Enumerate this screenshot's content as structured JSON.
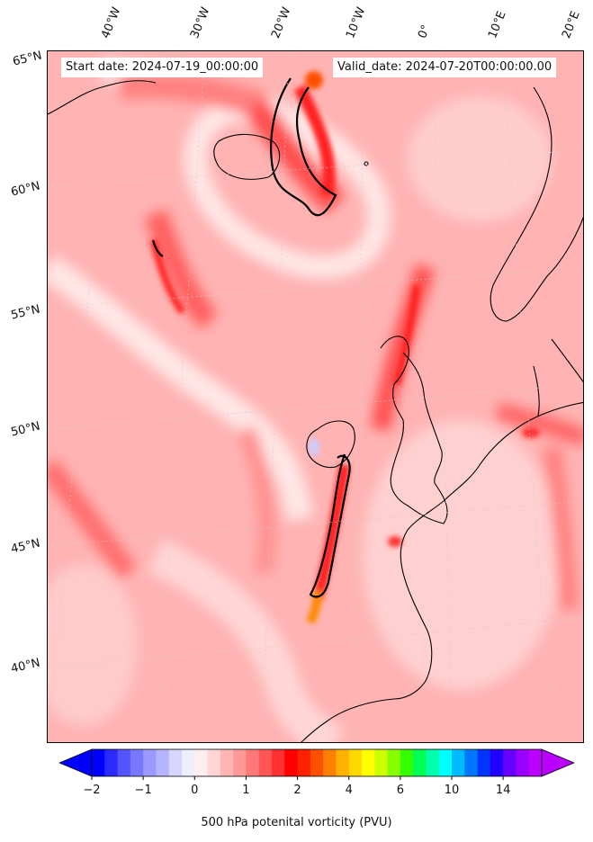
{
  "map": {
    "start_date_label": "Start date: 2024-07-19_00:00:00",
    "valid_date_label": "Valid_date: 2024-07-20T00:00:00.00",
    "longitude_labels": [
      "40°W",
      "30°W",
      "20°W",
      "10°W",
      "0°",
      "10°E",
      "20°E"
    ],
    "latitude_labels": [
      "65°N",
      "60°N",
      "55°N",
      "50°N",
      "45°N",
      "40°N"
    ]
  },
  "colorbar": {
    "title": "500 hPa potenital vorticity (PVU)",
    "tick_labels": [
      "−2",
      "−1",
      "0",
      "1",
      "2",
      "4",
      "6",
      "10",
      "14"
    ],
    "colors": [
      "#0000ff",
      "#2a2aff",
      "#5555ff",
      "#7777ff",
      "#9999ff",
      "#b5b5ff",
      "#d5d5ff",
      "#eeeeff",
      "#ffeeee",
      "#ffd5d5",
      "#ffb5b5",
      "#ff9999",
      "#ff7777",
      "#ff5555",
      "#ff3030",
      "#ff0000",
      "#ff2000",
      "#ff5000",
      "#ff8000",
      "#ffb000",
      "#ffd800",
      "#ffff00",
      "#ccff00",
      "#88ff00",
      "#33ff00",
      "#00ff55",
      "#00ffaa",
      "#00ffff",
      "#00bbff",
      "#0077ff",
      "#0033ff",
      "#2200ff",
      "#6600ff",
      "#9900ff",
      "#bb00ff"
    ]
  }
}
